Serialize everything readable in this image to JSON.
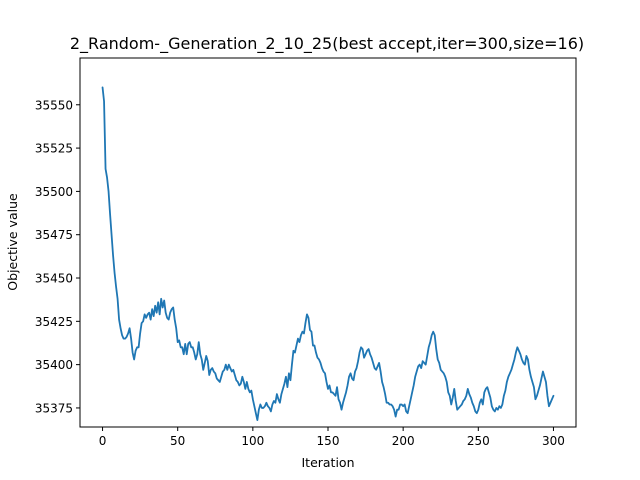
{
  "chart_data": {
    "type": "line",
    "title": "2_Random-_Generation_2_10_25(best accept,iter=300,size=16)",
    "xlabel": "Iteration",
    "ylabel": "Objective value",
    "xlim": [
      -15,
      315
    ],
    "ylim": [
      35364,
      35577
    ],
    "xticks": [
      0,
      50,
      100,
      150,
      200,
      250,
      300
    ],
    "yticks": [
      35375,
      35400,
      35425,
      35450,
      35475,
      35500,
      35525,
      35550
    ],
    "grid": false,
    "legend": "none",
    "series": [
      {
        "color": "#1f77b4",
        "x": [
          0,
          1,
          2,
          3,
          4,
          5,
          6,
          7,
          8,
          9,
          10,
          11,
          12,
          13,
          14,
          15,
          16,
          17,
          18,
          19,
          20,
          21,
          22,
          23,
          24,
          25,
          26,
          27,
          28,
          29,
          30,
          31,
          32,
          33,
          34,
          35,
          36,
          37,
          38,
          39,
          40,
          41,
          42,
          43,
          44,
          45,
          46,
          47,
          48,
          49,
          50,
          51,
          52,
          53,
          54,
          55,
          56,
          57,
          58,
          59,
          60,
          61,
          62,
          63,
          64,
          65,
          66,
          67,
          68,
          69,
          70,
          71,
          72,
          73,
          74,
          75,
          76,
          77,
          78,
          79,
          80,
          81,
          82,
          83,
          84,
          85,
          86,
          87,
          88,
          89,
          90,
          91,
          92,
          93,
          94,
          95,
          96,
          97,
          98,
          99,
          100,
          101,
          102,
          103,
          104,
          105,
          106,
          107,
          108,
          109,
          110,
          111,
          112,
          113,
          114,
          115,
          116,
          117,
          118,
          119,
          120,
          121,
          122,
          123,
          124,
          125,
          126,
          127,
          128,
          129,
          130,
          131,
          132,
          133,
          134,
          135,
          136,
          137,
          138,
          139,
          140,
          141,
          142,
          143,
          144,
          145,
          146,
          147,
          148,
          149,
          150,
          151,
          152,
          153,
          154,
          155,
          156,
          157,
          158,
          159,
          160,
          161,
          162,
          163,
          164,
          165,
          166,
          167,
          168,
          169,
          170,
          171,
          172,
          173,
          174,
          175,
          176,
          177,
          178,
          179,
          180,
          181,
          182,
          183,
          184,
          185,
          186,
          187,
          188,
          189,
          190,
          191,
          192,
          193,
          194,
          195,
          196,
          197,
          198,
          199,
          200,
          201,
          202,
          203,
          204,
          205,
          206,
          207,
          208,
          209,
          210,
          211,
          212,
          213,
          214,
          215,
          216,
          217,
          218,
          219,
          220,
          221,
          222,
          223,
          224,
          225,
          226,
          227,
          228,
          229,
          230,
          231,
          232,
          233,
          234,
          235,
          236,
          237,
          238,
          239,
          240,
          241,
          242,
          243,
          244,
          245,
          246,
          247,
          248,
          249,
          250,
          251,
          252,
          253,
          254,
          255,
          256,
          257,
          258,
          259,
          260,
          261,
          262,
          263,
          264,
          265,
          266,
          267,
          268,
          269,
          270,
          271,
          272,
          273,
          274,
          275,
          276,
          277,
          278,
          279,
          280,
          281,
          282,
          283,
          284,
          285,
          286,
          287,
          288,
          289,
          290,
          291,
          292,
          293,
          294,
          295,
          296,
          297,
          298,
          299,
          300
        ],
        "y": [
          35560,
          35552,
          35513,
          35508,
          35500,
          35487,
          35475,
          35463,
          35453,
          35445,
          35438,
          35426,
          35421,
          35417,
          35415,
          35415,
          35416,
          35418,
          35421,
          35415,
          35407,
          35403,
          35408,
          35410,
          35410,
          35418,
          35424,
          35425,
          35429,
          35427,
          35429,
          35430,
          35426,
          35432,
          35428,
          35434,
          35430,
          35436,
          35429,
          35438,
          35433,
          35437,
          35430,
          35427,
          35426,
          35430,
          35432,
          35433,
          35426,
          35421,
          35413,
          35414,
          35410,
          35410,
          35406,
          35412,
          35406,
          35412,
          35413,
          35410,
          35410,
          35407,
          35403,
          35406,
          35413,
          35406,
          35403,
          35397,
          35401,
          35405,
          35402,
          35394,
          35397,
          35398,
          35396,
          35395,
          35392,
          35391,
          35390,
          35393,
          35396,
          35397,
          35400,
          35397,
          35400,
          35398,
          35396,
          35397,
          35394,
          35391,
          35390,
          35388,
          35389,
          35393,
          35390,
          35386,
          35390,
          35386,
          35384,
          35385,
          35380,
          35376,
          35372,
          35368,
          35374,
          35377,
          35375,
          35375,
          35376,
          35378,
          35376,
          35375,
          35373,
          35377,
          35379,
          35378,
          35383,
          35380,
          35378,
          35383,
          35386,
          35389,
          35393,
          35387,
          35395,
          35391,
          35400,
          35408,
          35407,
          35411,
          35415,
          35413,
          35417,
          35419,
          35418,
          35424,
          35429,
          35427,
          35420,
          35419,
          35411,
          35411,
          35407,
          35404,
          35403,
          35401,
          35398,
          35396,
          35395,
          35390,
          35386,
          35388,
          35384,
          35384,
          35383,
          35382,
          35387,
          35380,
          35378,
          35374,
          35378,
          35381,
          35384,
          35388,
          35393,
          35395,
          35392,
          35391,
          35396,
          35398,
          35402,
          35407,
          35410,
          35409,
          35404,
          35406,
          35408,
          35409,
          35406,
          35404,
          35401,
          35398,
          35397,
          35399,
          35401,
          35396,
          35390,
          35387,
          35383,
          35378,
          35378,
          35377,
          35377,
          35376,
          35374,
          35370,
          35374,
          35374,
          35377,
          35377,
          35376,
          35377,
          35373,
          35372,
          35376,
          35380,
          35384,
          35388,
          35393,
          35396,
          35399,
          35400,
          35398,
          35402,
          35401,
          35400,
          35405,
          35410,
          35413,
          35417,
          35419,
          35417,
          35409,
          35403,
          35401,
          35397,
          35396,
          35395,
          35393,
          35390,
          35384,
          35382,
          35377,
          35381,
          35386,
          35379,
          35374,
          35375,
          35376,
          35377,
          35379,
          35380,
          35382,
          35386,
          35383,
          35381,
          35378,
          35376,
          35373,
          35372,
          35374,
          35378,
          35380,
          35377,
          35384,
          35386,
          35387,
          35384,
          35381,
          35376,
          35374,
          35373,
          35375,
          35374,
          35376,
          35375,
          35377,
          35382,
          35385,
          35390,
          35393,
          35395,
          35397,
          35400,
          35403,
          35407,
          35410,
          35408,
          35406,
          35403,
          35401,
          35400,
          35405,
          35403,
          35397,
          35393,
          35390,
          35387,
          35380,
          35382,
          35385,
          35388,
          35392,
          35396,
          35393,
          35390,
          35382,
          35376,
          35378,
          35380,
          35382
        ]
      }
    ]
  }
}
